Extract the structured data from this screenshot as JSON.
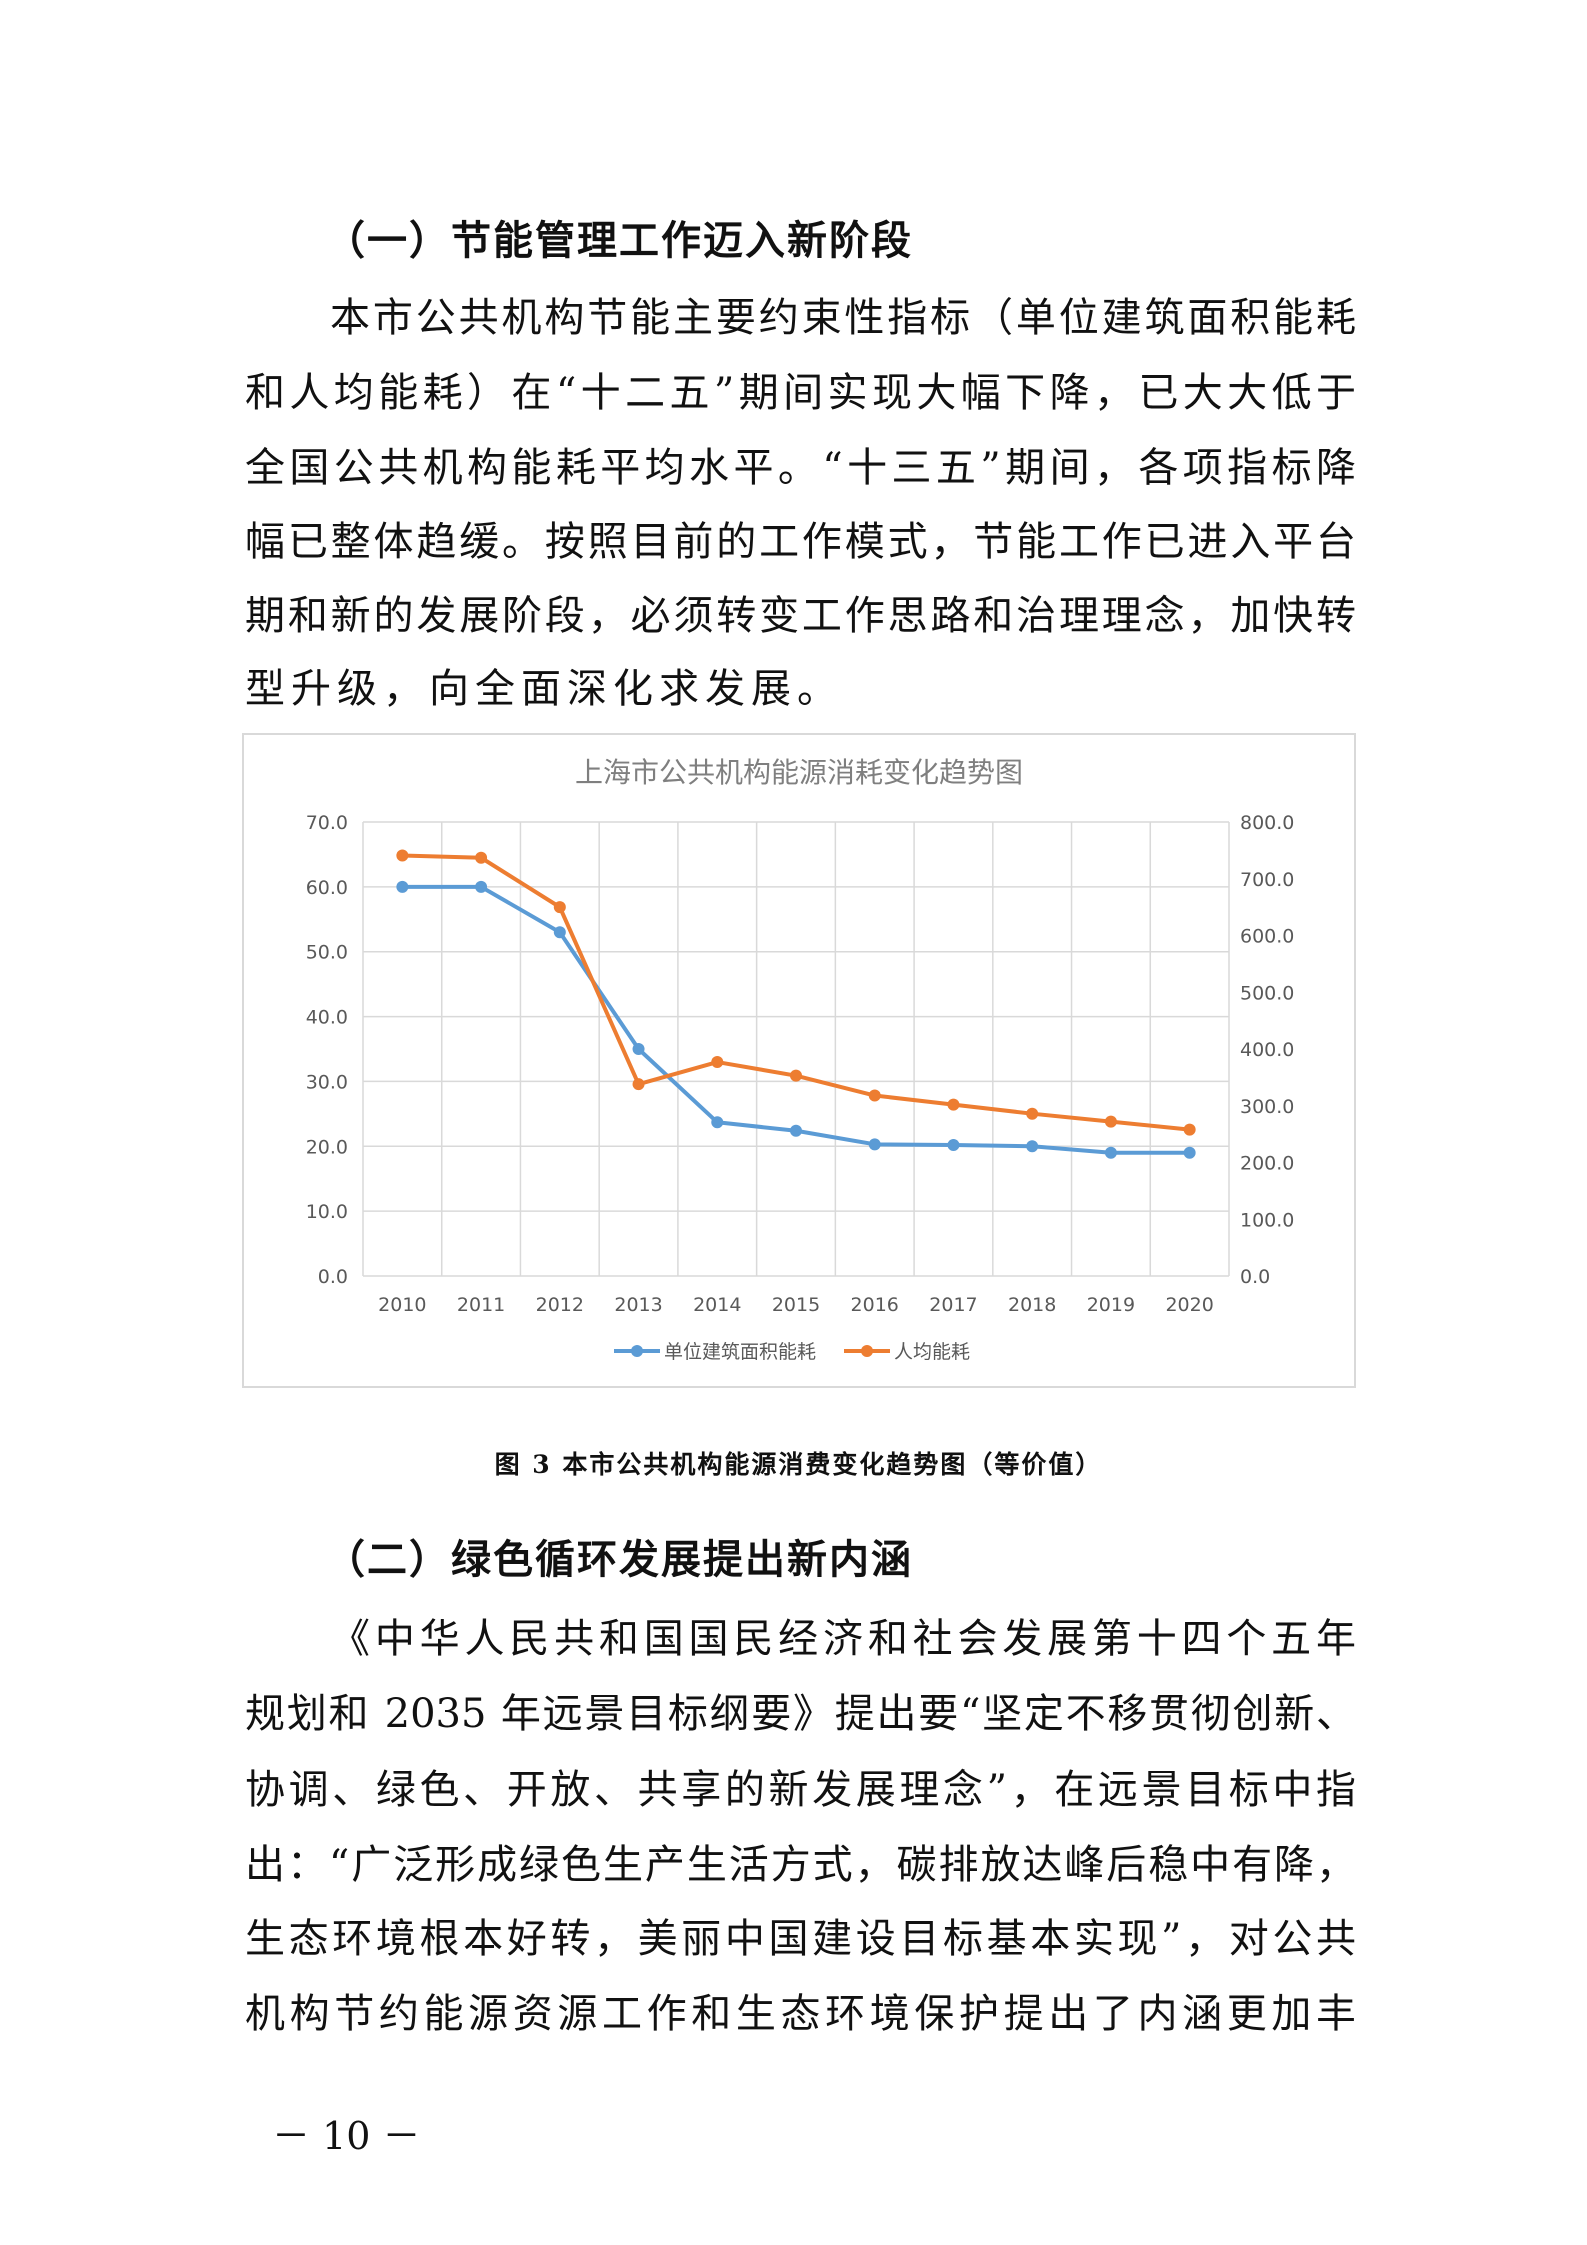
{
  "section1": {
    "heading": "（一）节能管理工作迈入新阶段",
    "lines": [
      "本市公共机构节能主要约束性指标（单位建筑面积能耗",
      "和人均能耗）在“十二五”期间实现大幅下降，已大大低于",
      "全国公共机构能耗平均水平。“十三五”期间，各项指标降",
      "幅已整体趋缓。按照目前的工作模式，节能工作已进入平台",
      "期和新的发展阶段，必须转变工作思路和治理理念，加快转",
      "型升级，向全面深化求发展。"
    ]
  },
  "figure_caption": "图 3  本市公共机构能源消费变化趋势图（等价值）",
  "section2": {
    "heading": "（二）绿色循环发展提出新内涵",
    "lines": [
      "《中华人民共和国国民经济和社会发展第十四个五年",
      "规划和 2035 年远景目标纲要》提出要“坚定不移贯彻创新、",
      "协调、绿色、开放、共享的新发展理念”，在远景目标中指",
      "出：“广泛形成绿色生产生活方式，碳排放达峰后稳中有降，",
      "生态环境根本好转，美丽中国建设目标基本实现”，对公共",
      "机构节约能源资源工作和生态环境保护提出了内涵更加丰"
    ]
  },
  "page_number": "－ 10 －",
  "chart_data": {
    "type": "line",
    "title": "上海市公共机构能源消耗变化趋势图",
    "categories": [
      "2010",
      "2011",
      "2012",
      "2013",
      "2014",
      "2015",
      "2016",
      "2017",
      "2018",
      "2019",
      "2020"
    ],
    "y_left": {
      "range": [
        0,
        70
      ],
      "ticks": [
        "0.0",
        "10.0",
        "20.0",
        "30.0",
        "40.0",
        "50.0",
        "60.0",
        "70.0"
      ]
    },
    "y_right": {
      "range": [
        0,
        800
      ],
      "ticks": [
        "0.0",
        "100.0",
        "200.0",
        "300.0",
        "400.0",
        "500.0",
        "600.0",
        "700.0",
        "800.0"
      ]
    },
    "grid": true,
    "legend_position": "bottom",
    "series": [
      {
        "name": "单位建筑面积能耗",
        "axis": "left",
        "color": "#5b9bd5",
        "values": [
          60.0,
          60.0,
          53.0,
          35.0,
          23.7,
          22.4,
          20.3,
          20.2,
          20.0,
          19.0,
          19.0
        ]
      },
      {
        "name": "人均能耗",
        "axis": "right",
        "color": "#ed7d31",
        "values": [
          741,
          737,
          650,
          338,
          377,
          353,
          318,
          302,
          286,
          272,
          258
        ]
      }
    ]
  }
}
